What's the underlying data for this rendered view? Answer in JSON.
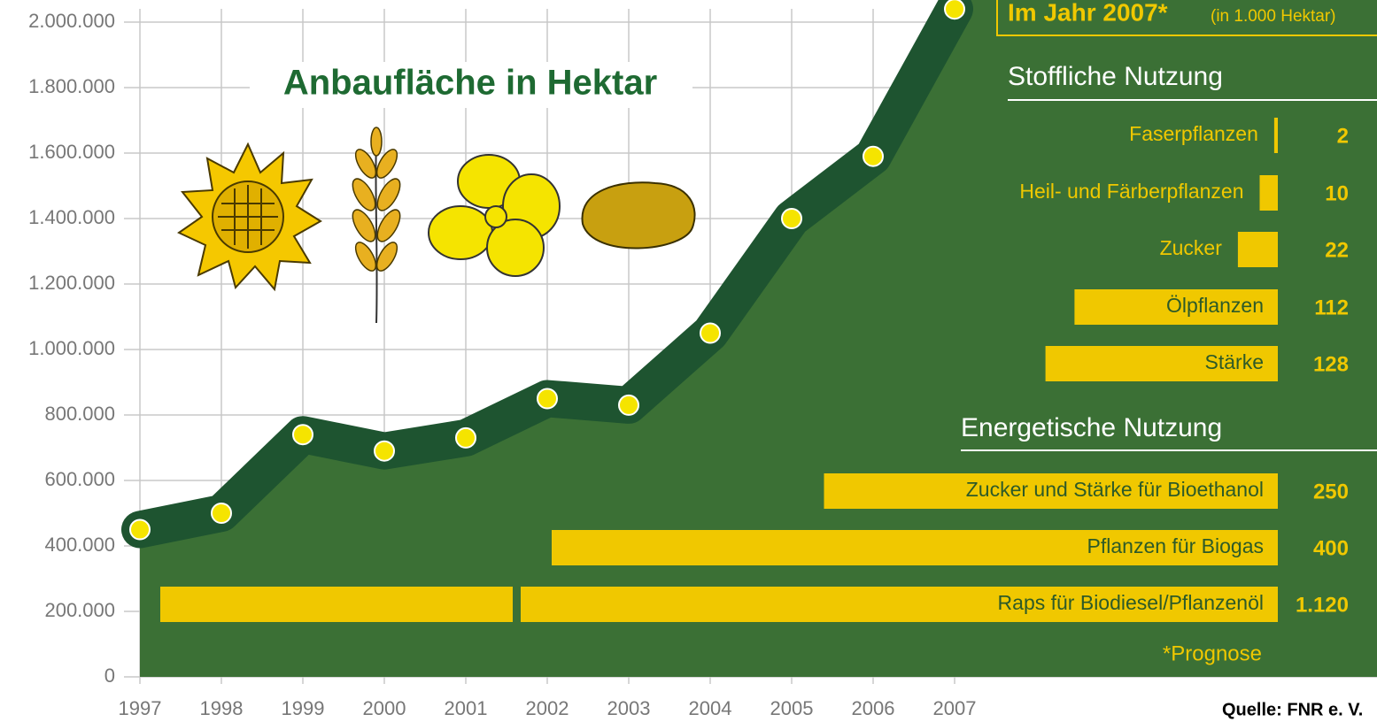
{
  "chart_data": [
    {
      "type": "area",
      "title": "Anbaufläche in Hektar",
      "x": [
        1997,
        1998,
        1999,
        2000,
        2001,
        2002,
        2003,
        2004,
        2005,
        2006,
        2007
      ],
      "values": [
        450000,
        500000,
        740000,
        690000,
        730000,
        850000,
        830000,
        1050000,
        1400000,
        1590000,
        2040000
      ],
      "color": "#3b7035",
      "line_color": "#1e5430",
      "marker_color": "#f5e400",
      "xlim": [
        1997,
        2007
      ],
      "xticks": [
        1997,
        1998,
        1999,
        2000,
        2001,
        2002,
        2003,
        2004,
        2005,
        2006,
        2007
      ],
      "ylim": [
        0,
        2000000
      ],
      "yticks": [
        0,
        {
          "value": 200000,
          "label": "200.000"
        },
        {
          "value": 400000,
          "label": "400.000"
        },
        {
          "value": 600000,
          "label": "600.000"
        },
        {
          "value": 800000,
          "label": "800.000"
        },
        {
          "value": 1000000,
          "label": "1.000.000"
        },
        {
          "value": 1200000,
          "label": "1.200.000"
        },
        {
          "value": 1400000,
          "label": "1.400.000"
        },
        {
          "value": 1600000,
          "label": "1.600.000"
        },
        {
          "value": 1800000,
          "label": "1.800.000"
        },
        {
          "value": 2000000,
          "label": "2.000.000"
        }
      ],
      "grid": true
    },
    {
      "type": "barh",
      "title": "Im Jahr 2007*",
      "subtitle": "(in 1.000 Hektar)",
      "color": "#f0c800",
      "groups": [
        {
          "name": "Stoffliche Nutzung",
          "categories": [
            "Faserpflanzen",
            "Heil- und Färberpflanzen",
            "Zucker",
            "Ölpflanzen",
            "Stärke"
          ],
          "values": [
            2,
            10,
            22,
            112,
            128
          ],
          "value_labels": [
            "2",
            "10",
            "22",
            "112",
            "128"
          ]
        },
        {
          "name": "Energetische Nutzung",
          "categories": [
            "Zucker und Stärke für Bioethanol",
            "Pflanzen für Biogas",
            "Raps für Biodiesel/Pflanzenöl"
          ],
          "values": [
            250,
            400,
            1120
          ],
          "value_labels": [
            "250",
            "400",
            "1.120"
          ]
        }
      ],
      "note": "*Prognose"
    }
  ],
  "source": "Quelle: FNR e. V."
}
